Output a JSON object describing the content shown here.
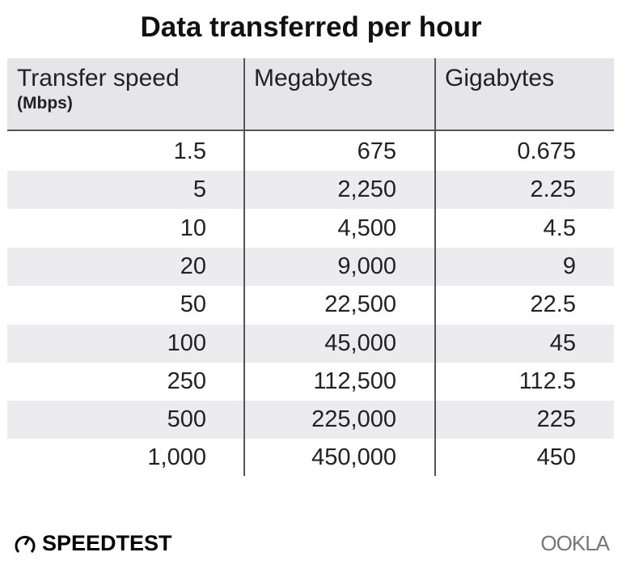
{
  "chart_data": {
    "type": "table",
    "title": "Data transferred per hour",
    "columns": [
      {
        "label": "Transfer speed",
        "sublabel": "(Mbps)"
      },
      {
        "label": "Megabytes"
      },
      {
        "label": "Gigabytes"
      }
    ],
    "rows": [
      [
        "1.5",
        "675",
        "0.675"
      ],
      [
        "5",
        "2,250",
        "2.25"
      ],
      [
        "10",
        "4,500",
        "4.5"
      ],
      [
        "20",
        "9,000",
        "9"
      ],
      [
        "50",
        "22,500",
        "22.5"
      ],
      [
        "100",
        "45,000",
        "45"
      ],
      [
        "250",
        "112,500",
        "112.5"
      ],
      [
        "500",
        "225,000",
        "225"
      ],
      [
        "1,000",
        "450,000",
        "450"
      ]
    ]
  },
  "footer": {
    "brand_left": "SPEEDTEST",
    "brand_right": "OOKLA"
  },
  "colors": {
    "header_bg": "#e6e6e8",
    "stripe": "#ececee",
    "rule": "#555555"
  }
}
